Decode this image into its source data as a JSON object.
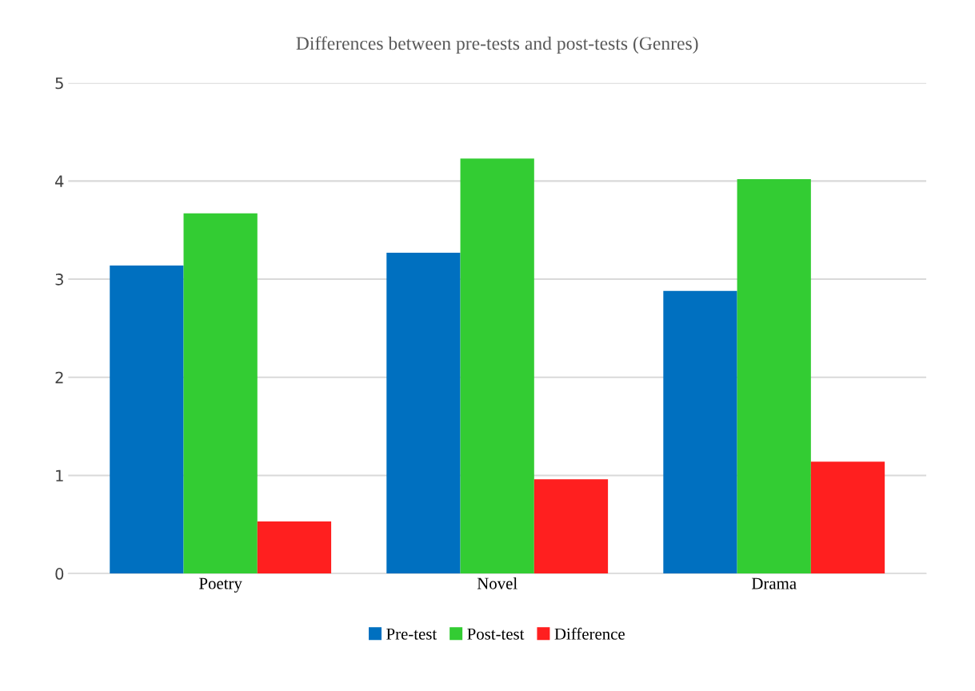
{
  "chart_data": {
    "type": "bar",
    "title": "Differences between pre-tests and post-tests (Genres)",
    "categories": [
      "Poetry",
      "Novel",
      "Drama"
    ],
    "series": [
      {
        "name": "Pre-test",
        "color": "#0070c0",
        "values": [
          3.14,
          3.27,
          2.88
        ]
      },
      {
        "name": "Post-test",
        "color": "#33cc33",
        "values": [
          3.67,
          4.23,
          4.02
        ]
      },
      {
        "name": "Difference",
        "color": "#ff1f1f",
        "values": [
          0.53,
          0.96,
          1.14
        ]
      }
    ],
    "ylim": [
      0,
      5
    ],
    "yticks": [
      0,
      1,
      2,
      3,
      4,
      5
    ],
    "grid": "y",
    "legend": "bottom"
  }
}
